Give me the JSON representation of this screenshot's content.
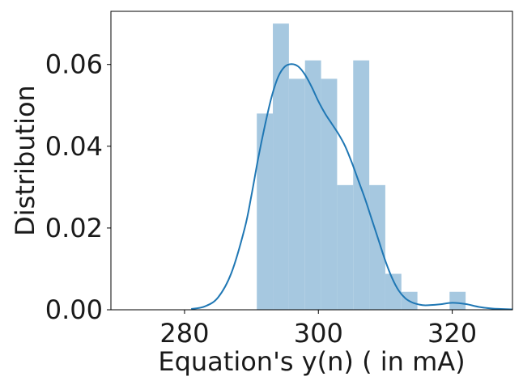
{
  "chart_data": {
    "type": "histogram",
    "title": "",
    "xlabel": "Equation's y(n) ( in mA)",
    "ylabel": "Distribution",
    "xlim": [
      269,
      329
    ],
    "ylim": [
      0,
      0.073
    ],
    "x_ticks": [
      {
        "value": 280,
        "label": "280"
      },
      {
        "value": 300,
        "label": "300"
      },
      {
        "value": 320,
        "label": "320"
      }
    ],
    "y_ticks": [
      {
        "value": 0.0,
        "label": "0.00"
      },
      {
        "value": 0.02,
        "label": "0.02"
      },
      {
        "value": 0.04,
        "label": "0.04"
      },
      {
        "value": 0.06,
        "label": "0.06"
      }
    ],
    "bins": [
      {
        "x0": 290.8,
        "x1": 293.2,
        "density": 0.048
      },
      {
        "x0": 293.2,
        "x1": 295.6,
        "density": 0.07
      },
      {
        "x0": 295.6,
        "x1": 298.0,
        "density": 0.0565
      },
      {
        "x0": 298.0,
        "x1": 300.4,
        "density": 0.061
      },
      {
        "x0": 300.4,
        "x1": 302.8,
        "density": 0.0565
      },
      {
        "x0": 302.8,
        "x1": 305.2,
        "density": 0.0305
      },
      {
        "x0": 305.2,
        "x1": 307.6,
        "density": 0.061
      },
      {
        "x0": 307.6,
        "x1": 310.0,
        "density": 0.0305
      },
      {
        "x0": 310.0,
        "x1": 312.4,
        "density": 0.0088
      },
      {
        "x0": 312.4,
        "x1": 314.8,
        "density": 0.0044
      },
      {
        "x0": 319.6,
        "x1": 322.0,
        "density": 0.0044
      }
    ],
    "kde": {
      "name": "KDE",
      "x": [
        281,
        283,
        285,
        287,
        289,
        290,
        291,
        292,
        293,
        294,
        295,
        296,
        297,
        298,
        299,
        300,
        301,
        302,
        303,
        304,
        305,
        306,
        307,
        308,
        309,
        310,
        311,
        312,
        313,
        314,
        315,
        316,
        318,
        320,
        322,
        324,
        326,
        329
      ],
      "y": [
        0.0002,
        0.0008,
        0.003,
        0.009,
        0.02,
        0.028,
        0.037,
        0.045,
        0.052,
        0.057,
        0.0595,
        0.0601,
        0.0595,
        0.0575,
        0.0545,
        0.051,
        0.048,
        0.0455,
        0.043,
        0.04,
        0.036,
        0.0315,
        0.027,
        0.022,
        0.017,
        0.012,
        0.0078,
        0.0047,
        0.0028,
        0.0018,
        0.0013,
        0.0011,
        0.0013,
        0.0017,
        0.0014,
        0.0007,
        0.0003,
        0.0001
      ]
    },
    "colors": {
      "bar": "#a6c8e0",
      "line": "#1f77b4",
      "frame": "#000000"
    }
  }
}
